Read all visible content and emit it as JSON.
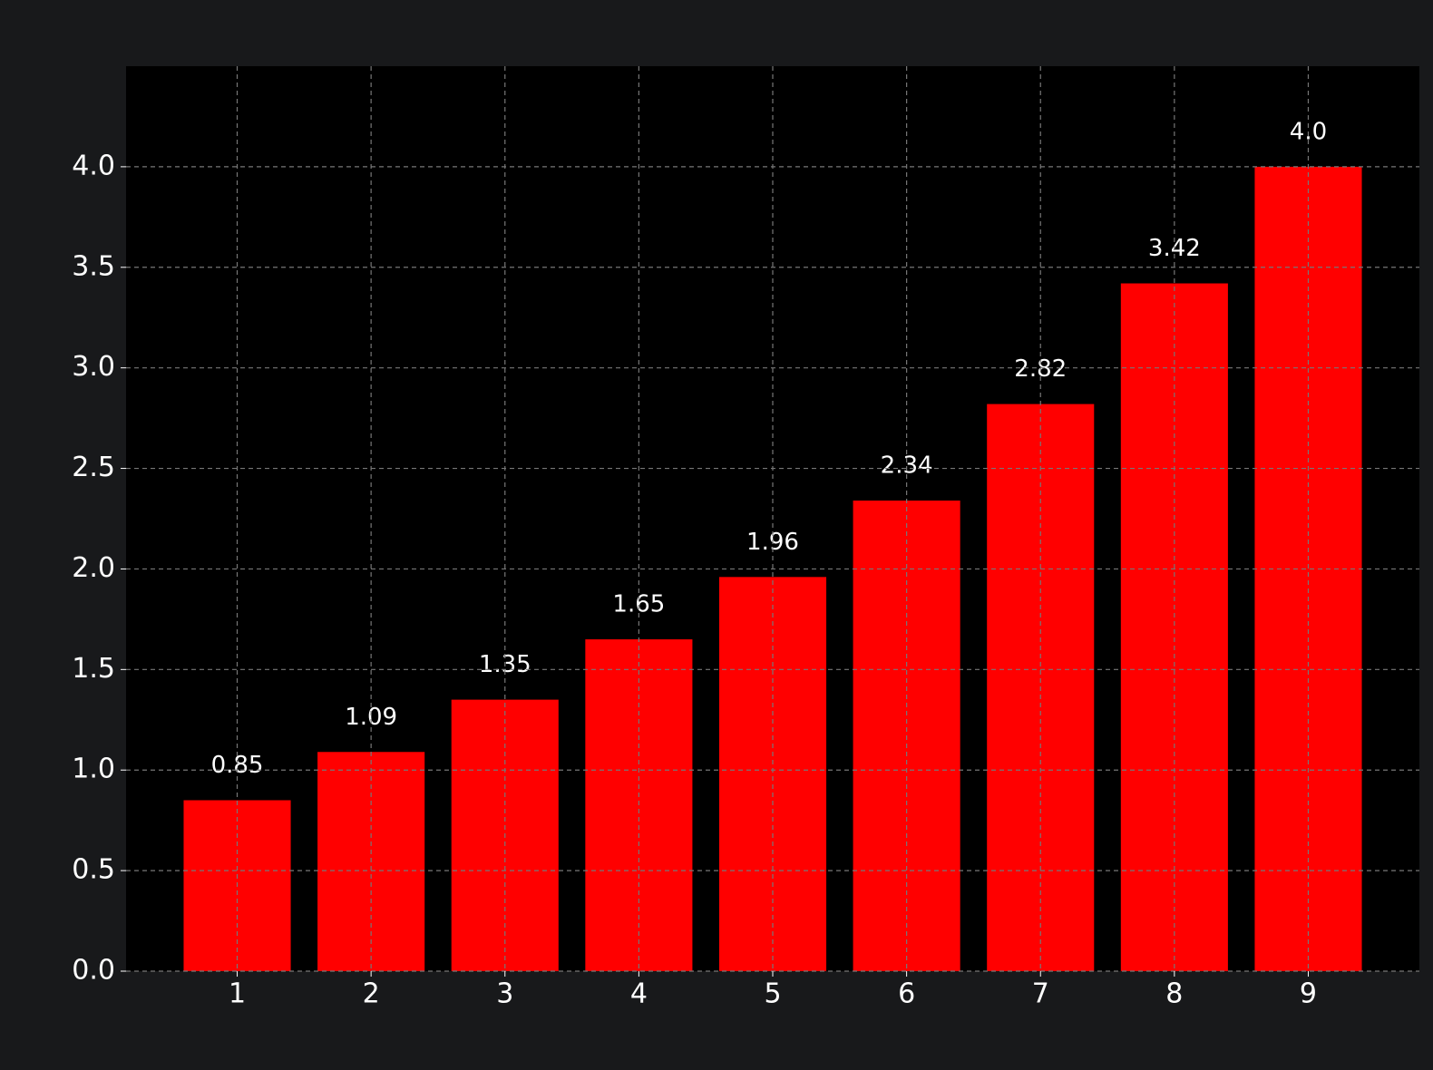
{
  "chart_data": {
    "type": "bar",
    "x": [
      1,
      2,
      3,
      4,
      5,
      6,
      7,
      8,
      9
    ],
    "values": [
      0.85,
      1.09,
      1.35,
      1.65,
      1.96,
      2.34,
      2.82,
      3.42,
      4
    ],
    "value_labels": [
      "0.85",
      "1.09",
      "1.35",
      "1.65",
      "1.96",
      "2.34",
      "2.82",
      "3.42",
      "4.0"
    ],
    "color": "#ff0000",
    "xlim": [
      0.17,
      9.83
    ],
    "xticks": [
      1,
      2,
      3,
      4,
      5,
      6,
      7,
      8,
      9
    ],
    "ylim": [
      0,
      4.5
    ],
    "yticks": [
      {
        "value": 0,
        "label": "0.0"
      },
      0.5,
      {
        "value": 1,
        "label": "1.0"
      },
      1.5,
      {
        "value": 2,
        "label": "2.0"
      },
      2.5,
      {
        "value": 3,
        "label": "3.0"
      },
      3.5,
      {
        "value": 4,
        "label": "4.0"
      }
    ],
    "grid": true
  }
}
